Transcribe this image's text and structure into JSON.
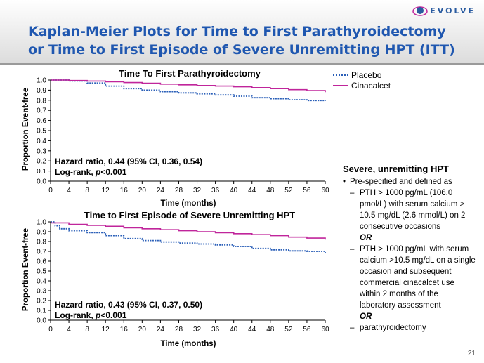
{
  "slide": {
    "title_line1": "Kaplan-Meier Plots for Time to First Parathyroidectomy",
    "title_line2": "or Time to First Episode of Severe Unremitting HPT (ITT)",
    "logo_text": "EVOLVE",
    "page_number": "21"
  },
  "legend": {
    "placebo": "Placebo",
    "cinacalcet": "Cinacalcet"
  },
  "colors": {
    "placebo": "#2a5fb8",
    "cinacalcet": "#c0259b",
    "title": "#1f57b0"
  },
  "chart_data": [
    {
      "type": "line",
      "title": "Time To First Parathyroidectomy",
      "xlabel": "Time (months)",
      "ylabel": "Proportion Event-free",
      "xlim": [
        0,
        60
      ],
      "ylim": [
        0,
        1.0
      ],
      "xticks": [
        0,
        4,
        8,
        12,
        16,
        20,
        24,
        28,
        32,
        36,
        40,
        44,
        48,
        52,
        56,
        60
      ],
      "yticks": [
        0.0,
        0.1,
        0.2,
        0.3,
        0.4,
        0.5,
        0.6,
        0.7,
        0.8,
        0.9,
        1.0
      ],
      "ytick_labels": [
        "0.0",
        "0.1",
        "0.2",
        "0.3",
        "0.4",
        "0.5",
        "0.6",
        "0.7",
        "0.8",
        "0.9",
        "1.0"
      ],
      "series": [
        {
          "name": "Placebo",
          "style": "dotted",
          "x": [
            0,
            4,
            8,
            12,
            16,
            20,
            24,
            28,
            32,
            36,
            40,
            44,
            48,
            52,
            56,
            60
          ],
          "y": [
            1.0,
            0.99,
            0.97,
            0.94,
            0.915,
            0.9,
            0.885,
            0.873,
            0.863,
            0.853,
            0.84,
            0.825,
            0.815,
            0.805,
            0.797,
            0.793
          ]
        },
        {
          "name": "Cinacalcet",
          "style": "solid",
          "x": [
            0,
            4,
            8,
            12,
            16,
            20,
            24,
            28,
            32,
            36,
            40,
            44,
            48,
            52,
            56,
            60
          ],
          "y": [
            1.0,
            0.995,
            0.99,
            0.983,
            0.975,
            0.968,
            0.96,
            0.953,
            0.946,
            0.94,
            0.933,
            0.925,
            0.915,
            0.905,
            0.895,
            0.88
          ]
        }
      ],
      "annotations": {
        "hazard": "Hazard ratio, 0.44 (95% CI, 0.36, 0.54)",
        "logrank_prefix": "Log-rank, ",
        "logrank_p": "p",
        "logrank_value": "<0.001"
      }
    },
    {
      "type": "line",
      "title": "Time to First Episode of Severe Unremitting HPT",
      "xlabel": "Time (months)",
      "ylabel": "Proportion Event-free",
      "xlim": [
        0,
        60
      ],
      "ylim": [
        0,
        1.0
      ],
      "xticks": [
        0,
        4,
        8,
        12,
        16,
        20,
        24,
        28,
        32,
        36,
        40,
        44,
        48,
        52,
        56,
        60
      ],
      "yticks": [
        0.0,
        0.1,
        0.2,
        0.3,
        0.4,
        0.5,
        0.6,
        0.7,
        0.8,
        0.9,
        1.0
      ],
      "ytick_labels": [
        "0.0",
        "0.1",
        "0.2",
        "0.3",
        "0.4",
        "0.5",
        "0.6",
        "0.7",
        "0.8",
        "0.9",
        "1.0"
      ],
      "series": [
        {
          "name": "Placebo",
          "style": "dotted",
          "x": [
            0,
            1,
            2,
            4,
            8,
            12,
            16,
            20,
            24,
            28,
            32,
            36,
            40,
            44,
            48,
            52,
            56,
            60
          ],
          "y": [
            1.0,
            0.96,
            0.93,
            0.91,
            0.89,
            0.86,
            0.83,
            0.81,
            0.795,
            0.785,
            0.775,
            0.765,
            0.75,
            0.73,
            0.715,
            0.705,
            0.7,
            0.685
          ]
        },
        {
          "name": "Cinacalcet",
          "style": "solid",
          "x": [
            0,
            4,
            8,
            12,
            16,
            20,
            24,
            28,
            32,
            36,
            40,
            44,
            48,
            52,
            56,
            60
          ],
          "y": [
            0.99,
            0.975,
            0.965,
            0.955,
            0.94,
            0.93,
            0.92,
            0.91,
            0.9,
            0.89,
            0.88,
            0.87,
            0.86,
            0.845,
            0.835,
            0.82
          ]
        }
      ],
      "annotations": {
        "hazard": "Hazard ratio, 0.43 (95% CI, 0.37, 0.50)",
        "logrank_prefix": "Log-rank, ",
        "logrank_p": "p",
        "logrank_value": "<0.001"
      }
    }
  ],
  "definition": {
    "heading": "Severe, unremitting HPT",
    "bullet": "Pre-specified and defined as",
    "item1": "PTH > 1000 pg/mL (106.0 pmol/L) with serum calcium > 10.5 mg/dL (2.6 mmol/L) on 2 consecutive occasions",
    "or1": "OR",
    "item2": "PTH > 1000 pg/mL with serum calcium >10.5 mg/dL on a single occasion and subsequent commercial cinacalcet use within 2 months of the laboratory assessment",
    "or2": "OR",
    "item3": "parathyroidectomy"
  }
}
